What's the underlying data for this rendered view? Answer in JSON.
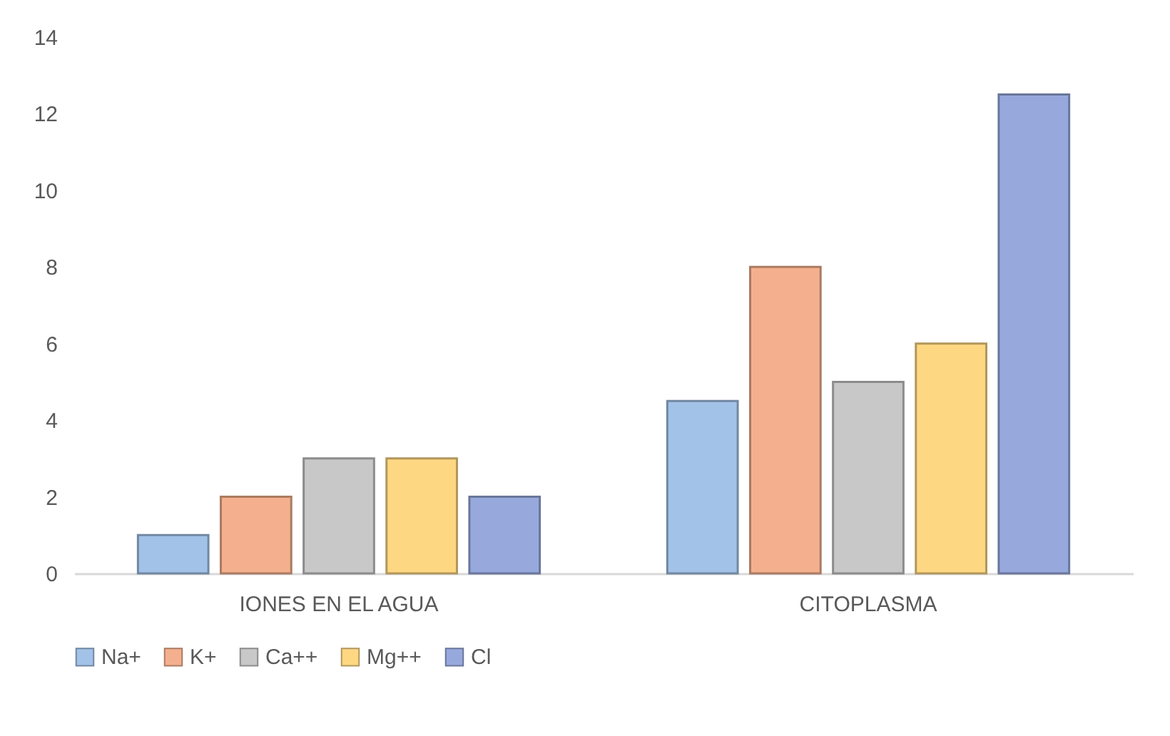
{
  "chart_data": {
    "type": "bar",
    "categories": [
      "IONES EN EL AGUA",
      "CITOPLASMA"
    ],
    "series": [
      {
        "name": "Na+",
        "color": "#a2c2e8",
        "values": [
          1,
          4.5
        ]
      },
      {
        "name": "K+",
        "color": "#f4b08e",
        "values": [
          2,
          8
        ]
      },
      {
        "name": "Ca++",
        "color": "#c8c8c8",
        "values": [
          3,
          5
        ]
      },
      {
        "name": "Mg++",
        "color": "#fed783",
        "values": [
          3,
          6
        ]
      },
      {
        "name": "Cl",
        "color": "#97a9dc",
        "values": [
          2,
          12.5
        ]
      }
    ],
    "ylim": [
      0,
      14
    ],
    "yticks": [
      0,
      2,
      4,
      6,
      8,
      10,
      12,
      14
    ],
    "grid": false,
    "legend": "bottom"
  }
}
